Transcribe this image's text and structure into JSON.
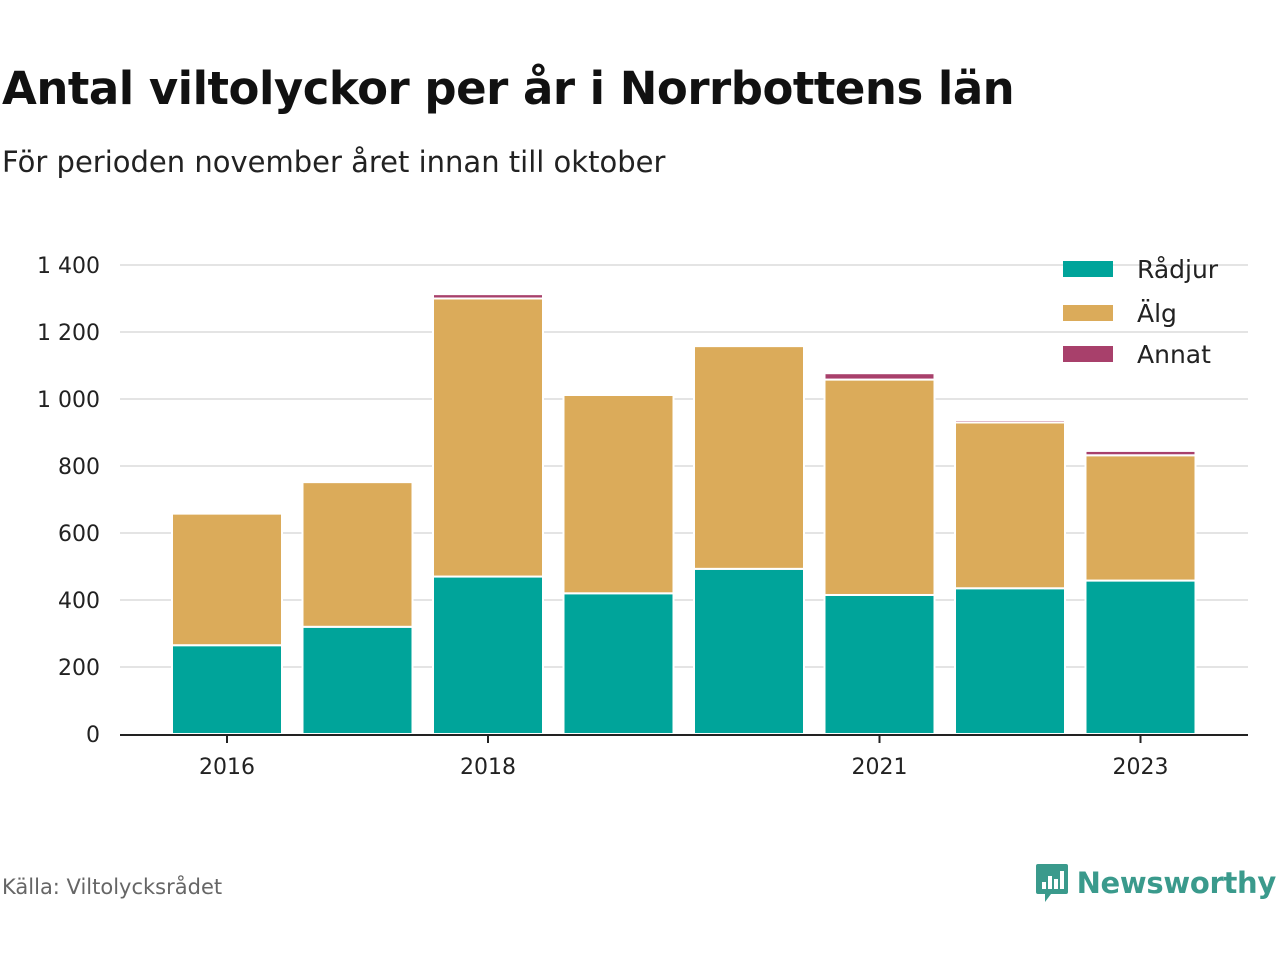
{
  "header": {
    "title": "Antal viltolyckor per år i Norrbottens län",
    "subtitle": "För perioden november året innan till oktober"
  },
  "footer": {
    "source": "Källa: Viltolycksrådet",
    "brand": "Newsworthy",
    "brand_icon": "bar-chart-speech-bubble-icon"
  },
  "chart_data": {
    "type": "bar",
    "stacked": true,
    "categories": [
      "2016",
      "2017",
      "2018",
      "2019",
      "2020",
      "2021",
      "2022",
      "2023"
    ],
    "x_tick_labels": [
      "2016",
      "",
      "2018",
      "",
      "",
      "2021",
      "",
      "2023"
    ],
    "y_ticks": [
      0,
      200,
      400,
      600,
      800,
      1000,
      1200,
      1400
    ],
    "y_tick_labels": [
      "0",
      "200",
      "400",
      "600",
      "800",
      "1 000",
      "1 200",
      "1 400"
    ],
    "ylim": [
      0,
      1400
    ],
    "grid": true,
    "legend_position": "top-right",
    "series": [
      {
        "name": "Rådjur",
        "color": "#00a49a",
        "values": [
          265,
          320,
          470,
          420,
          493,
          415,
          435,
          458
        ]
      },
      {
        "name": "Älg",
        "color": "#dbab5a",
        "values": [
          393,
          432,
          830,
          592,
          665,
          643,
          495,
          374
        ]
      },
      {
        "name": "Annat",
        "color": "#a8406b",
        "values": [
          2,
          3,
          13,
          5,
          2,
          19,
          7,
          13
        ]
      }
    ],
    "title": "Antal viltolyckor per år i Norrbottens län",
    "xlabel": "",
    "ylabel": ""
  }
}
